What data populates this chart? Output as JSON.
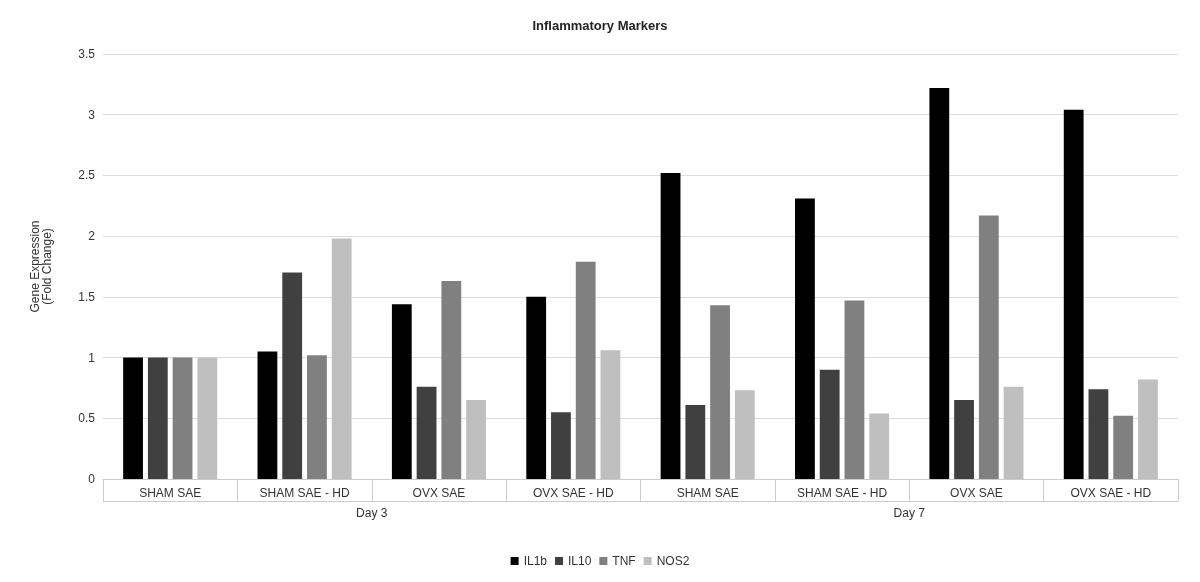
{
  "chart_data": {
    "type": "bar",
    "title": "Inflammatory Markers",
    "ylabel": "Gene Expression\n(Fold Change)",
    "categories": [
      "SHAM SAE",
      "SHAM SAE - HD",
      "OVX SAE",
      "OVX SAE - HD",
      "SHAM SAE",
      "SHAM SAE - HD",
      "OVX SAE",
      "OVX SAE - HD"
    ],
    "annotations": [
      "Day 3",
      "Day 7"
    ],
    "series": [
      {
        "name": "IL1b",
        "color": "#000000",
        "values": [
          1,
          1.05,
          1.44,
          1.5,
          2.52,
          2.31,
          3.22,
          3.04
        ]
      },
      {
        "name": "IL10",
        "color": "#404040",
        "values": [
          1,
          1.7,
          0.76,
          0.55,
          0.61,
          0.9,
          0.65,
          0.74
        ]
      },
      {
        "name": "TNF",
        "color": "#808080",
        "values": [
          1,
          1.02,
          1.63,
          1.79,
          1.43,
          1.47,
          2.17,
          0.52
        ]
      },
      {
        "name": "NOS2",
        "color": "#bfbfbf",
        "values": [
          1,
          1.98,
          0.65,
          1.06,
          0.73,
          0.54,
          0.76,
          0.82
        ]
      }
    ],
    "ylim": [
      0,
      3.5
    ],
    "yticks": [
      0,
      0.5,
      1,
      1.5,
      2,
      2.5,
      3,
      3.5
    ],
    "grid": "y",
    "legend": "bottom"
  }
}
